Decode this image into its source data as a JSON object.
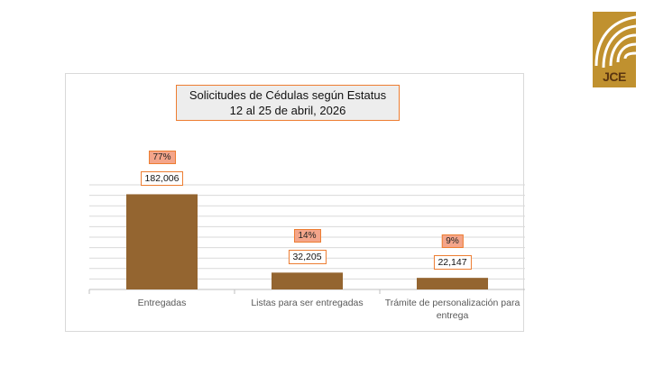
{
  "logo": {
    "text": "JCE"
  },
  "chart_data": {
    "type": "bar",
    "title": "Solicitudes de Cédulas según Estatus",
    "subtitle": "12 al 25 de abril, 2026",
    "categories": [
      "Entregadas",
      "Listas para ser entregadas",
      "Trámite de personalización para entrega"
    ],
    "values": [
      182006,
      32205,
      22147
    ],
    "value_labels": [
      "182,006",
      "32,205",
      "22,147"
    ],
    "percent_labels": [
      "77%",
      "14%",
      "9%"
    ],
    "ylim": [
      0,
      200000
    ],
    "grid": true,
    "bar_color": "#946530",
    "xlabel": "",
    "ylabel": ""
  }
}
